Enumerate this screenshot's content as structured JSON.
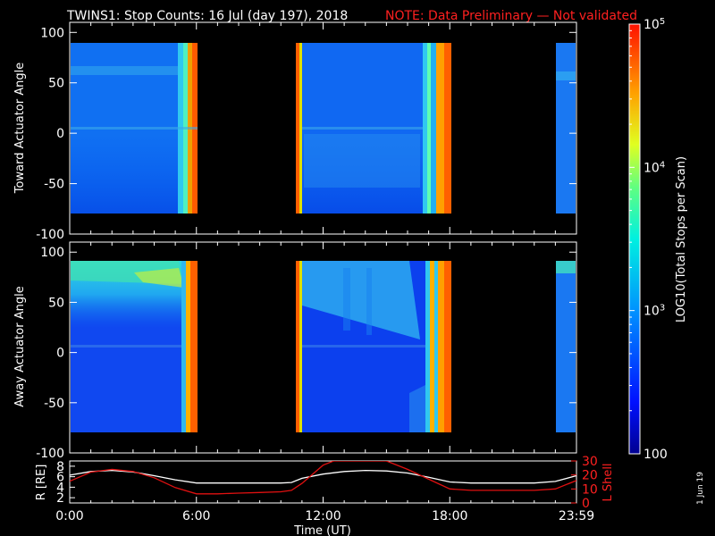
{
  "header": {
    "title": "TWINS1: Stop Counts: 16 Jul (day 197), 2018",
    "note": "NOTE: Data Preliminary — Not validated"
  },
  "colors": {
    "background": "#000000",
    "axes": "#ffffff",
    "note": "#ff2020",
    "r_line": "#ffffff",
    "lshell_line": "#e01010"
  },
  "side_label": "1 Jun 19",
  "colorbar": {
    "label": "LOG10(Total Stops per Scan)",
    "scale": "log",
    "min": 100,
    "max": 100000,
    "tick_labels": [
      "10^5",
      "10^4",
      "10^3",
      "100"
    ],
    "colormap": "rainbow (blue to red)"
  },
  "chart_data": [
    {
      "type": "heatmap",
      "name": "toward",
      "ylabel": "Toward Actuator Angle",
      "ylim": [
        -100,
        110
      ],
      "yticks": [
        "100",
        "50",
        "0",
        "-50",
        "-100"
      ],
      "xlim_hours": [
        0,
        24
      ],
      "data_extent_deg": [
        -90,
        90
      ],
      "coverage_hours": [
        [
          0.0,
          6.0
        ],
        [
          10.5,
          18.0
        ],
        [
          22.5,
          24.0
        ]
      ]
    },
    {
      "type": "heatmap",
      "name": "away",
      "ylabel": "Away Actuator Angle",
      "ylim": [
        -100,
        110
      ],
      "yticks": [
        "100",
        "50",
        "0",
        "-50",
        "-100"
      ],
      "xlim_hours": [
        0,
        24
      ],
      "data_extent_deg": [
        -90,
        90
      ],
      "coverage_hours": [
        [
          0.0,
          6.0
        ],
        [
          10.5,
          18.0
        ],
        [
          22.5,
          24.0
        ]
      ]
    },
    {
      "type": "line",
      "name": "orbit",
      "xlabel": "Time (UT)",
      "xticks": [
        "0:00",
        "6:00",
        "12:00",
        "18:00",
        "23:59"
      ],
      "left_ylabel": "R [RE]",
      "left_yticks": [
        "8",
        "6",
        "4",
        "2"
      ],
      "left_ylim": [
        1,
        9
      ],
      "right_ylabel": "L Shell",
      "right_yticks": [
        "30",
        "20",
        "10",
        "0"
      ],
      "right_ylim": [
        0,
        30
      ],
      "series": [
        {
          "name": "R [RE]",
          "axis": "left",
          "x": [
            0,
            1,
            2,
            3,
            4,
            5,
            6,
            7,
            8,
            9,
            10,
            10.5,
            11,
            12,
            13,
            14,
            15,
            16,
            17,
            18,
            19,
            20,
            21,
            22,
            23,
            24
          ],
          "y": [
            6.3,
            7.0,
            7.2,
            6.9,
            6.2,
            5.4,
            4.8,
            4.8,
            4.8,
            4.8,
            4.8,
            4.9,
            5.7,
            6.5,
            7.0,
            7.2,
            7.1,
            6.7,
            5.9,
            5.0,
            4.8,
            4.8,
            4.8,
            4.8,
            5.1,
            6.2
          ]
        },
        {
          "name": "L Shell",
          "axis": "right",
          "x": [
            0,
            1,
            2,
            3,
            4,
            5,
            6,
            7,
            8,
            9,
            10,
            10.5,
            11,
            12,
            12.5,
            13,
            14,
            15,
            16,
            17,
            18,
            19,
            20,
            21,
            22,
            23,
            24
          ],
          "y": [
            15.5,
            22,
            24,
            22.5,
            18,
            11,
            6.5,
            6.5,
            7,
            7.5,
            8,
            9,
            14,
            27,
            30,
            30,
            30,
            30,
            24,
            17,
            10,
            9,
            9,
            9,
            9,
            10,
            16
          ]
        }
      ]
    }
  ]
}
